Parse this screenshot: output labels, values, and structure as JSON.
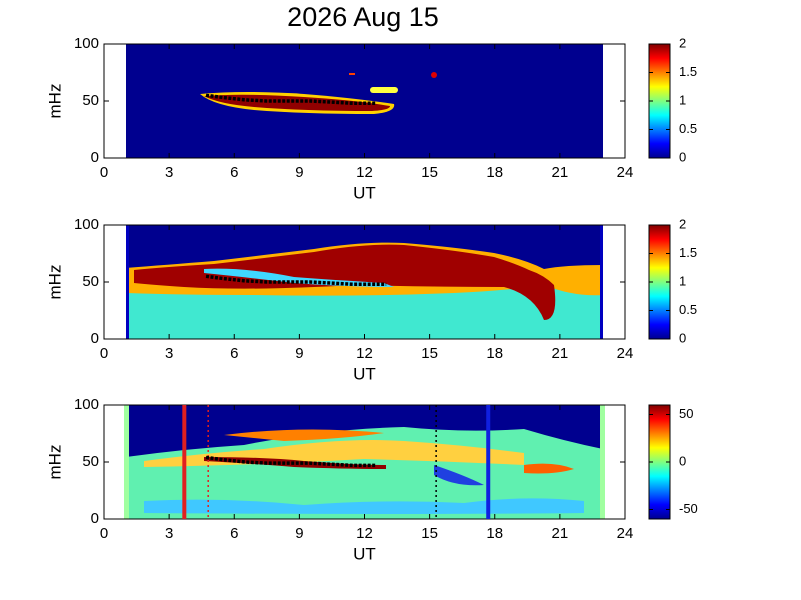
{
  "title": "2026 Aug 15",
  "chart_data": [
    {
      "type": "spectrogram",
      "xlabel": "UT",
      "ylabel": "mHz",
      "xlim": [
        0,
        24
      ],
      "xticks": [
        0,
        3,
        6,
        9,
        12,
        15,
        18,
        21,
        24
      ],
      "ylim": [
        0,
        100
      ],
      "yticks": [
        0,
        50,
        100
      ],
      "data_xlim": [
        1,
        23
      ],
      "clim": [
        0,
        2
      ],
      "cticks": [
        0,
        0.5,
        1,
        1.5,
        2
      ],
      "ridge": {
        "color": "#000000",
        "x": [
          4.7,
          5.5,
          6.5,
          7.5,
          8.5,
          9.5,
          10.5,
          11.5,
          12.5
        ],
        "y": [
          55,
          53,
          51,
          50,
          50,
          50,
          49,
          48,
          48
        ]
      }
    },
    {
      "type": "spectrogram",
      "xlabel": "UT",
      "ylabel": "mHz",
      "xlim": [
        0,
        24
      ],
      "xticks": [
        0,
        3,
        6,
        9,
        12,
        15,
        18,
        21,
        24
      ],
      "ylim": [
        0,
        100
      ],
      "yticks": [
        0,
        50,
        100
      ],
      "data_xlim": [
        1,
        23
      ],
      "clim": [
        0,
        2
      ],
      "cticks": [
        0,
        0.5,
        1,
        1.5,
        2
      ],
      "ridge": {
        "color": "#000000",
        "x": [
          4.7,
          5.5,
          6.5,
          7.5,
          8.5,
          9.5,
          10.5,
          11.5,
          12.5,
          13
        ],
        "y": [
          55,
          53,
          51,
          50,
          50,
          50,
          49,
          48,
          48,
          48
        ]
      }
    },
    {
      "type": "spectrogram",
      "xlabel": "UT",
      "ylabel": "mHz",
      "xlim": [
        0,
        24
      ],
      "xticks": [
        0,
        3,
        6,
        9,
        12,
        15,
        18,
        21,
        24
      ],
      "ylim": [
        0,
        100
      ],
      "yticks": [
        0,
        50,
        100
      ],
      "data_xlim": [
        1,
        23
      ],
      "clim": [
        -60,
        60
      ],
      "cticks": [
        -50,
        0,
        50
      ],
      "ridge": {
        "color": "#000000",
        "x": [
          4.7,
          5.5,
          6.5,
          7.5,
          8.5,
          9.5,
          10.5,
          11.5,
          12.5
        ],
        "y": [
          54,
          52,
          50,
          49,
          49,
          49,
          48,
          47,
          47
        ]
      },
      "markers": [
        {
          "x": 3.7,
          "color": "#e02020",
          "style": "solid"
        },
        {
          "x": 4.8,
          "color": "#e02020",
          "style": "dotted"
        },
        {
          "x": 15.3,
          "color": "#000000",
          "style": "dotted"
        },
        {
          "x": 17.7,
          "color": "#1020e0",
          "style": "solid"
        }
      ]
    }
  ]
}
